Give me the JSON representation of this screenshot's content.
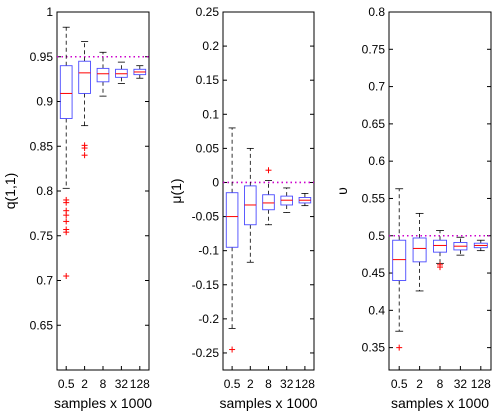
{
  "chart_data": [
    {
      "type": "box",
      "categories": [
        "0.5",
        "2",
        "8",
        "32",
        "128"
      ],
      "xlabel": "samples x 1000",
      "ylabel": "q(1,1)",
      "ylim": [
        0.6,
        1.0
      ],
      "yticks": [
        0.65,
        0.7,
        0.75,
        0.8,
        0.85,
        0.9,
        0.95,
        1
      ],
      "ytick_labels": [
        "0.65",
        "0.7",
        "0.75",
        "0.8",
        "0.85",
        "0.9",
        "0.95",
        "1"
      ],
      "reference_value": 0.95,
      "boxes": [
        {
          "whisker_low": 0.803,
          "q1": 0.881,
          "median": 0.909,
          "q3": 0.94,
          "whisker_high": 0.983
        },
        {
          "whisker_low": 0.873,
          "q1": 0.909,
          "median": 0.932,
          "q3": 0.945,
          "whisker_high": 0.967
        },
        {
          "whisker_low": 0.906,
          "q1": 0.922,
          "median": 0.931,
          "q3": 0.937,
          "whisker_high": 0.955
        },
        {
          "whisker_low": 0.92,
          "q1": 0.927,
          "median": 0.931,
          "q3": 0.936,
          "whisker_high": 0.944
        },
        {
          "whisker_low": 0.926,
          "q1": 0.93,
          "median": 0.933,
          "q3": 0.936,
          "whisker_high": 0.94
        }
      ],
      "outliers": [
        [
          0.79,
          0.787,
          0.778,
          0.773,
          0.766,
          0.757,
          0.754,
          0.705
        ],
        [
          0.851,
          0.848,
          0.84
        ],
        [],
        [],
        []
      ]
    },
    {
      "type": "box",
      "categories": [
        "0.5",
        "2",
        "8",
        "32",
        "128"
      ],
      "xlabel": "samples x 1000",
      "ylabel": "μ(1)",
      "ylim": [
        -0.275,
        0.25
      ],
      "yticks": [
        -0.25,
        -0.2,
        -0.15,
        -0.1,
        -0.05,
        0,
        0.05,
        0.1,
        0.15,
        0.2,
        0.25
      ],
      "ytick_labels": [
        "-0.25",
        "-0.2",
        "-0.15",
        "-0.1",
        "-0.05",
        "0",
        "0.05",
        "0.1",
        "0.15",
        "0.2",
        "0.25"
      ],
      "reference_value": 0,
      "boxes": [
        {
          "whisker_low": -0.214,
          "q1": -0.095,
          "median": -0.05,
          "q3": -0.015,
          "whisker_high": 0.08
        },
        {
          "whisker_low": -0.117,
          "q1": -0.062,
          "median": -0.033,
          "q3": -0.005,
          "whisker_high": 0.05
        },
        {
          "whisker_low": -0.062,
          "q1": -0.04,
          "median": -0.03,
          "q3": -0.018,
          "whisker_high": 0.003
        },
        {
          "whisker_low": -0.044,
          "q1": -0.033,
          "median": -0.026,
          "q3": -0.02,
          "whisker_high": -0.008
        },
        {
          "whisker_low": -0.034,
          "q1": -0.03,
          "median": -0.026,
          "q3": -0.022,
          "whisker_high": -0.016
        }
      ],
      "outliers": [
        [
          -0.245
        ],
        [],
        [
          0.018
        ],
        [],
        []
      ]
    },
    {
      "type": "box",
      "categories": [
        "0.5",
        "2",
        "8",
        "32",
        "128"
      ],
      "xlabel": "samples x 1000",
      "ylabel": "υ",
      "ylim": [
        0.32,
        0.8
      ],
      "yticks": [
        0.35,
        0.4,
        0.45,
        0.5,
        0.55,
        0.6,
        0.65,
        0.7,
        0.75,
        0.8
      ],
      "ytick_labels": [
        "0.35",
        "0.4",
        "0.45",
        "0.5",
        "0.55",
        "0.6",
        "0.65",
        "0.7",
        "0.75",
        "0.8"
      ],
      "reference_value": 0.5,
      "boxes": [
        {
          "whisker_low": 0.372,
          "q1": 0.44,
          "median": 0.468,
          "q3": 0.494,
          "whisker_high": 0.563
        },
        {
          "whisker_low": 0.426,
          "q1": 0.465,
          "median": 0.483,
          "q3": 0.497,
          "whisker_high": 0.53
        },
        {
          "whisker_low": 0.463,
          "q1": 0.478,
          "median": 0.487,
          "q3": 0.494,
          "whisker_high": 0.507
        },
        {
          "whisker_low": 0.474,
          "q1": 0.481,
          "median": 0.486,
          "q3": 0.491,
          "whisker_high": 0.498
        },
        {
          "whisker_low": 0.48,
          "q1": 0.484,
          "median": 0.487,
          "q3": 0.49,
          "whisker_high": 0.494
        }
      ],
      "outliers": [
        [
          0.35
        ],
        [],
        [
          0.461,
          0.458
        ],
        [],
        []
      ]
    }
  ],
  "colors": {
    "box": "#4a4aff",
    "median": "#ff0000",
    "outlier": "#ff0000",
    "whisker": "#000000",
    "reference_line": "#cc00cc"
  }
}
